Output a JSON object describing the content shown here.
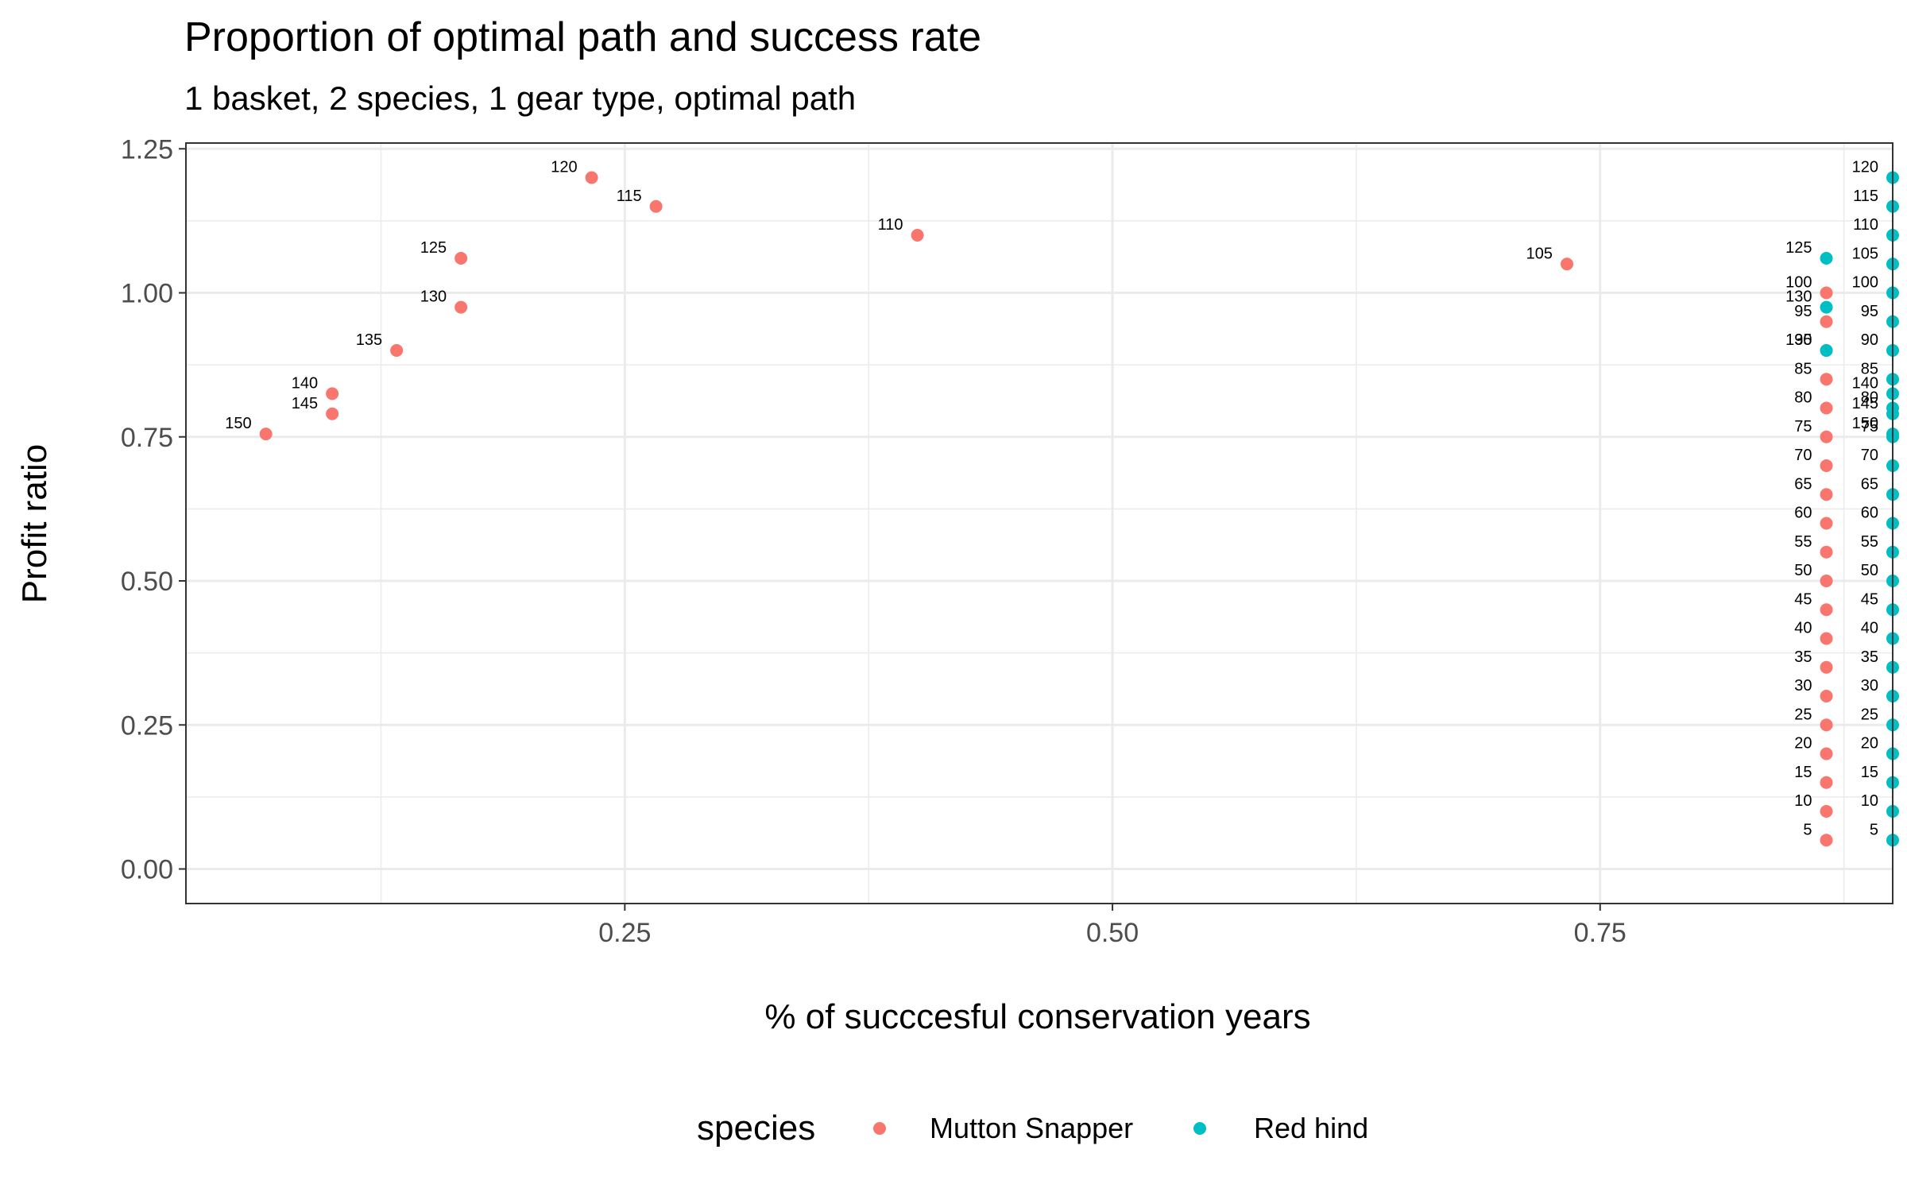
{
  "chart_data": {
    "type": "scatter",
    "title": "Proportion of optimal path and success rate",
    "subtitle": "1 basket, 2 species, 1 gear type, optimal path",
    "xlabel": "% of succcesful conservation years",
    "ylabel": "Profit ratio",
    "xlim": [
      0.025,
      0.9
    ],
    "ylim": [
      -0.06,
      1.26
    ],
    "x_ticks": [
      0.25,
      0.5,
      0.75
    ],
    "x_tick_labels": [
      "0.25",
      "0.50",
      "0.75"
    ],
    "y_ticks": [
      0,
      0.25,
      0.5,
      0.75,
      1.0,
      1.25
    ],
    "y_tick_labels": [
      "0.00",
      "0.25",
      "0.50",
      "0.75",
      "1.00",
      "1.25"
    ],
    "grid": true,
    "legend_position": "bottom",
    "legend_title": "species",
    "series": [
      {
        "name": "Mutton Snapper",
        "color": "#F8766D",
        "points": [
          {
            "x": 0.866,
            "y": 0.05,
            "label": "5"
          },
          {
            "x": 0.866,
            "y": 0.1,
            "label": "10"
          },
          {
            "x": 0.866,
            "y": 0.15,
            "label": "15"
          },
          {
            "x": 0.866,
            "y": 0.2,
            "label": "20"
          },
          {
            "x": 0.866,
            "y": 0.25,
            "label": "25"
          },
          {
            "x": 0.866,
            "y": 0.3,
            "label": "30"
          },
          {
            "x": 0.866,
            "y": 0.35,
            "label": "35"
          },
          {
            "x": 0.866,
            "y": 0.4,
            "label": "40"
          },
          {
            "x": 0.866,
            "y": 0.45,
            "label": "45"
          },
          {
            "x": 0.866,
            "y": 0.5,
            "label": "50"
          },
          {
            "x": 0.866,
            "y": 0.55,
            "label": "55"
          },
          {
            "x": 0.866,
            "y": 0.6,
            "label": "60"
          },
          {
            "x": 0.866,
            "y": 0.65,
            "label": "65"
          },
          {
            "x": 0.866,
            "y": 0.7,
            "label": "70"
          },
          {
            "x": 0.866,
            "y": 0.75,
            "label": "75"
          },
          {
            "x": 0.866,
            "y": 0.8,
            "label": "80"
          },
          {
            "x": 0.866,
            "y": 0.85,
            "label": "85"
          },
          {
            "x": 0.866,
            "y": 0.9,
            "label": "90"
          },
          {
            "x": 0.866,
            "y": 0.95,
            "label": "95"
          },
          {
            "x": 0.866,
            "y": 1.0,
            "label": "100"
          },
          {
            "x": 0.733,
            "y": 1.05,
            "label": "105"
          },
          {
            "x": 0.4,
            "y": 1.1,
            "label": "110"
          },
          {
            "x": 0.266,
            "y": 1.15,
            "label": "115"
          },
          {
            "x": 0.233,
            "y": 1.2,
            "label": "120"
          },
          {
            "x": 0.166,
            "y": 1.06,
            "label": "125"
          },
          {
            "x": 0.166,
            "y": 0.975,
            "label": "130"
          },
          {
            "x": 0.133,
            "y": 0.9,
            "label": "135"
          },
          {
            "x": 0.1,
            "y": 0.825,
            "label": "140"
          },
          {
            "x": 0.1,
            "y": 0.79,
            "label": "145"
          },
          {
            "x": 0.066,
            "y": 0.755,
            "label": "150"
          }
        ]
      },
      {
        "name": "Red hind",
        "color": "#00BFC4",
        "points": [
          {
            "x": 0.9,
            "y": 0.05,
            "label": "5"
          },
          {
            "x": 0.9,
            "y": 0.1,
            "label": "10"
          },
          {
            "x": 0.9,
            "y": 0.15,
            "label": "15"
          },
          {
            "x": 0.9,
            "y": 0.2,
            "label": "20"
          },
          {
            "x": 0.9,
            "y": 0.25,
            "label": "25"
          },
          {
            "x": 0.9,
            "y": 0.3,
            "label": "30"
          },
          {
            "x": 0.9,
            "y": 0.35,
            "label": "35"
          },
          {
            "x": 0.9,
            "y": 0.4,
            "label": "40"
          },
          {
            "x": 0.9,
            "y": 0.45,
            "label": "45"
          },
          {
            "x": 0.9,
            "y": 0.5,
            "label": "50"
          },
          {
            "x": 0.9,
            "y": 0.55,
            "label": "55"
          },
          {
            "x": 0.9,
            "y": 0.6,
            "label": "60"
          },
          {
            "x": 0.9,
            "y": 0.65,
            "label": "65"
          },
          {
            "x": 0.9,
            "y": 0.7,
            "label": "70"
          },
          {
            "x": 0.9,
            "y": 0.75,
            "label": "75"
          },
          {
            "x": 0.9,
            "y": 0.8,
            "label": "80"
          },
          {
            "x": 0.9,
            "y": 0.85,
            "label": "85"
          },
          {
            "x": 0.9,
            "y": 0.9,
            "label": "90"
          },
          {
            "x": 0.9,
            "y": 0.95,
            "label": "95"
          },
          {
            "x": 0.9,
            "y": 1.0,
            "label": "100"
          },
          {
            "x": 0.9,
            "y": 1.05,
            "label": "105"
          },
          {
            "x": 0.9,
            "y": 1.1,
            "label": "110"
          },
          {
            "x": 0.9,
            "y": 1.15,
            "label": "115"
          },
          {
            "x": 0.9,
            "y": 1.2,
            "label": "120"
          },
          {
            "x": 0.866,
            "y": 1.06,
            "label": "125"
          },
          {
            "x": 0.866,
            "y": 0.975,
            "label": "130"
          },
          {
            "x": 0.866,
            "y": 0.9,
            "label": "135"
          },
          {
            "x": 0.9,
            "y": 0.825,
            "label": "140"
          },
          {
            "x": 0.9,
            "y": 0.79,
            "label": "145"
          },
          {
            "x": 0.9,
            "y": 0.755,
            "label": "150"
          }
        ]
      }
    ]
  }
}
